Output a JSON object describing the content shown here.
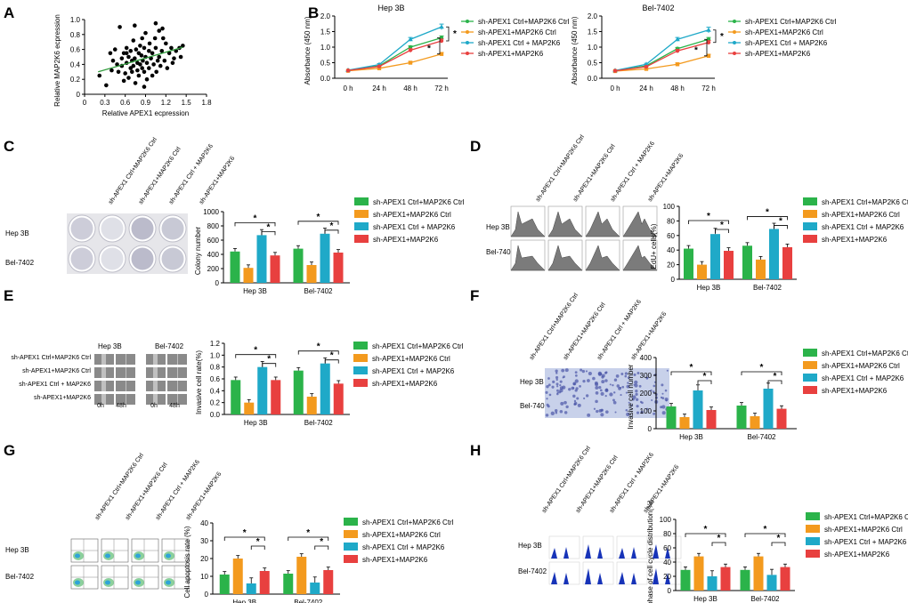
{
  "panel_letters": [
    "A",
    "B",
    "C",
    "D",
    "E",
    "F",
    "G",
    "H"
  ],
  "bar_categories": [
    "Hep 3B",
    "Bel-7402"
  ],
  "bar_series_names": [
    "sh-APEX1 Ctrl+MAP2K6 Ctrl",
    "sh-APEX1+MAP2K6 Ctrl",
    "sh-APEX1 Ctrl + MAP2K6",
    "sh-APEX1+MAP2K6"
  ],
  "bar_series_colors": [
    "#2bb34a",
    "#f39a1e",
    "#1fa9c8",
    "#e8403f"
  ],
  "line_series_names": [
    "sh-APEX1 Ctrl+MAP2K6 Ctrl",
    "sh-APEX1+MAP2K6 Ctrl",
    "sh-APEX1 Ctrl + MAP2K6",
    "sh-APEX1+MAP2K6"
  ],
  "line_series_colors": [
    "#2bb34a",
    "#f39a1e",
    "#1fa9c8",
    "#e8403f"
  ],
  "line_legend_label_ctrl": "sh-APEX1 Ctrl+MAP2K6 Ctrl",
  "sig_mark": "*",
  "side_labels": {
    "hep3b": "Hep 3B",
    "bel7402": "Bel-7402"
  },
  "e_time_labels": [
    "0h",
    "48h",
    "0h",
    "48h"
  ],
  "e_cell_headers": [
    "Hep 3B",
    "Bel-7402"
  ],
  "chart_data": [
    {
      "id": "A",
      "type": "scatter",
      "title": "",
      "xlabel": "Relative APEX1 ecpression",
      "ylabel": "Relative MAP2K6 ecpression",
      "xlim": [
        0,
        1.8
      ],
      "ylim": [
        0,
        1.0
      ],
      "xticks": [
        "0",
        "0.3",
        "0.6",
        "0.9",
        "1.2",
        "1.5",
        "1.8"
      ],
      "yticks": [
        "0",
        "0.2",
        "0.4",
        "0.6",
        "0.8",
        "1.0"
      ],
      "x": [
        0.22,
        0.32,
        0.38,
        0.4,
        0.42,
        0.48,
        0.5,
        0.52,
        0.55,
        0.55,
        0.58,
        0.6,
        0.62,
        0.62,
        0.65,
        0.65,
        0.68,
        0.68,
        0.7,
        0.7,
        0.72,
        0.72,
        0.74,
        0.75,
        0.76,
        0.78,
        0.78,
        0.8,
        0.8,
        0.82,
        0.82,
        0.84,
        0.85,
        0.85,
        0.86,
        0.88,
        0.88,
        0.9,
        0.9,
        0.92,
        0.92,
        0.95,
        0.95,
        0.96,
        0.98,
        1.0,
        1.0,
        1.02,
        1.04,
        1.05,
        1.06,
        1.08,
        1.1,
        1.1,
        1.12,
        1.14,
        1.15,
        1.18,
        1.2,
        1.22,
        1.25,
        1.28,
        1.3,
        1.32,
        1.35,
        1.4,
        1.42,
        1.45,
        0.58,
        0.74,
        0.62,
        0.88,
        1.16,
        0.45,
        1.05
      ],
      "y": [
        0.25,
        0.12,
        0.55,
        0.32,
        0.45,
        0.4,
        0.3,
        0.9,
        0.38,
        0.48,
        0.55,
        0.28,
        0.42,
        0.62,
        0.22,
        0.5,
        0.35,
        0.58,
        0.3,
        0.45,
        0.72,
        0.38,
        0.48,
        0.15,
        0.6,
        0.32,
        0.42,
        0.55,
        0.25,
        0.4,
        0.65,
        0.52,
        0.35,
        0.75,
        0.45,
        0.3,
        0.62,
        0.5,
        0.82,
        0.2,
        0.42,
        0.58,
        0.35,
        0.68,
        0.48,
        0.25,
        0.55,
        0.4,
        0.75,
        0.62,
        0.3,
        0.45,
        0.85,
        0.5,
        0.38,
        0.58,
        0.88,
        0.45,
        0.68,
        0.35,
        0.55,
        0.62,
        0.42,
        0.48,
        0.58,
        0.62,
        0.5,
        0.65,
        0.18,
        0.92,
        0.55,
        0.1,
        0.75,
        0.6,
        0.95
      ],
      "fit": {
        "x0": 0.2,
        "y0": 0.3,
        "x1": 1.45,
        "y1": 0.63
      }
    },
    {
      "id": "B1",
      "type": "line",
      "title": "Hep 3B",
      "xlabel": "",
      "ylabel": "Absorbance (450 nm)",
      "categories": [
        "0 h",
        "24 h",
        "48 h",
        "72 h"
      ],
      "ylim": [
        0,
        2.0
      ],
      "yticks": [
        "0.0",
        "0.5",
        "1.0",
        "1.5",
        "2.0"
      ],
      "series": [
        {
          "name": "sh-APEX1 Ctrl+MAP2K6 Ctrl",
          "values": [
            0.25,
            0.4,
            1.0,
            1.3
          ]
        },
        {
          "name": "sh-APEX1+MAP2K6 Ctrl",
          "values": [
            0.24,
            0.32,
            0.5,
            0.78
          ]
        },
        {
          "name": "sh-APEX1 Ctrl + MAP2K6",
          "values": [
            0.26,
            0.44,
            1.25,
            1.65
          ]
        },
        {
          "name": "sh-APEX1+MAP2K6",
          "values": [
            0.25,
            0.38,
            0.9,
            1.2
          ]
        }
      ]
    },
    {
      "id": "B2",
      "type": "line",
      "title": "Bel-7402",
      "xlabel": "",
      "ylabel": "Absorbance (450 nm)",
      "categories": [
        "0 h",
        "24 h",
        "48 h",
        "72 h"
      ],
      "ylim": [
        0,
        2.0
      ],
      "yticks": [
        "0.0",
        "0.5",
        "1.0",
        "1.5",
        "2.0"
      ],
      "series": [
        {
          "name": "sh-APEX1 Ctrl+MAP2K6 Ctrl",
          "values": [
            0.24,
            0.4,
            0.95,
            1.25
          ]
        },
        {
          "name": "sh-APEX1+MAP2K6 Ctrl",
          "values": [
            0.23,
            0.3,
            0.45,
            0.72
          ]
        },
        {
          "name": "sh-APEX1 Ctrl + MAP2K6",
          "values": [
            0.25,
            0.45,
            1.25,
            1.55
          ]
        },
        {
          "name": "sh-APEX1+MAP2K6",
          "values": [
            0.24,
            0.37,
            0.88,
            1.15
          ]
        }
      ]
    },
    {
      "id": "C",
      "type": "bar",
      "ylabel": "Colony number",
      "ylim": [
        0,
        1000
      ],
      "yticks": [
        "0",
        "200",
        "400",
        "600",
        "800",
        "1000"
      ],
      "categories": [
        "Hep 3B",
        "Bel-7402"
      ],
      "values": [
        [
          440,
          210,
          670,
          385
        ],
        [
          480,
          250,
          690,
          425
        ]
      ]
    },
    {
      "id": "D",
      "type": "bar",
      "ylabel": "EdU+ cells(%)",
      "ylim": [
        0,
        100
      ],
      "yticks": [
        "0",
        "20",
        "40",
        "60",
        "80",
        "100"
      ],
      "categories": [
        "Hep 3B",
        "Bel-7402"
      ],
      "values": [
        [
          42,
          20,
          62,
          39
        ],
        [
          46,
          27,
          69,
          44
        ]
      ]
    },
    {
      "id": "E",
      "type": "bar",
      "ylabel": "Invasive cell rate(%)",
      "ylim": [
        0,
        1.2
      ],
      "yticks": [
        "0.0",
        "0.2",
        "0.4",
        "0.6",
        "0.8",
        "1.0",
        "1.2"
      ],
      "categories": [
        "Hep 3B",
        "Bel-7402"
      ],
      "values": [
        [
          0.58,
          0.2,
          0.8,
          0.58
        ],
        [
          0.74,
          0.3,
          0.86,
          0.52
        ]
      ]
    },
    {
      "id": "F",
      "type": "bar",
      "ylabel": "Invasive cell number",
      "ylim": [
        0,
        400
      ],
      "yticks": [
        "0",
        "100",
        "200",
        "300",
        "400"
      ],
      "categories": [
        "Hep 3B",
        "Bel-7402"
      ],
      "values": [
        [
          125,
          65,
          215,
          105
        ],
        [
          130,
          70,
          225,
          112
        ]
      ]
    },
    {
      "id": "G",
      "type": "bar",
      "ylabel": "Cell apoptosis rate (%)",
      "ylim": [
        0,
        40
      ],
      "yticks": [
        "0",
        "10",
        "20",
        "30",
        "40"
      ],
      "categories": [
        "Hep 3B",
        "Bel-7402"
      ],
      "values": [
        [
          11,
          20,
          6,
          13
        ],
        [
          11.5,
          21,
          6.5,
          13.5
        ]
      ]
    },
    {
      "id": "H",
      "type": "bar",
      "ylabel": "G1 phase of cell cycle distribution(%)",
      "ylim": [
        0,
        100
      ],
      "yticks": [
        "0",
        "20",
        "40",
        "60",
        "80",
        "100"
      ],
      "categories": [
        "Hep 3B",
        "Bel-7402"
      ],
      "values": [
        [
          29,
          48,
          20,
          33
        ],
        [
          29,
          48,
          22,
          33
        ]
      ]
    }
  ]
}
